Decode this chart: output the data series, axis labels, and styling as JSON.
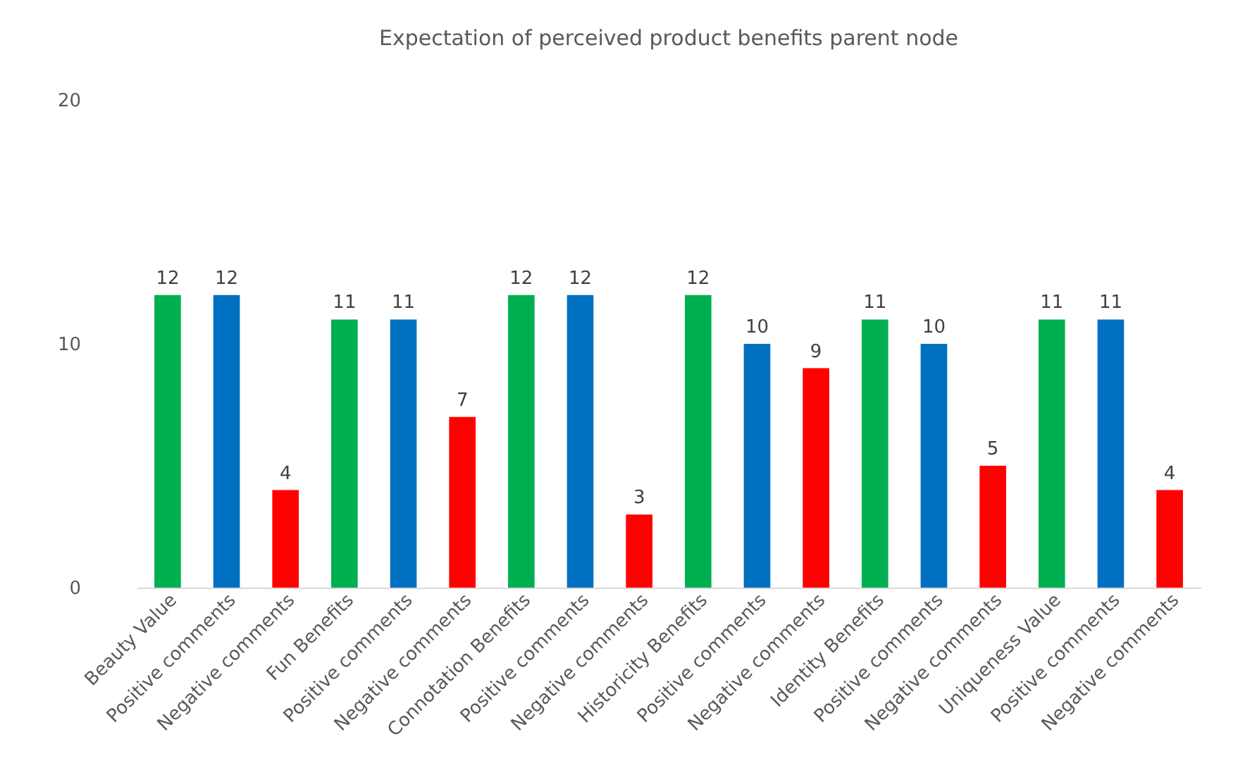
{
  "chart_data": {
    "type": "bar",
    "title": "Expectation of perceived product benefits parent node",
    "categories": [
      "Beauty Value",
      "Positive comments",
      "Negative comments",
      "Fun Benefits",
      "Positive comments",
      "Negative comments",
      "Connotation Benefits",
      "Positive comments",
      "Negative comments",
      "Historicity Benefits",
      "Positive comments",
      "Negative comments",
      "Identity Benefits",
      "Positive comments",
      "Negative comments",
      "Uniqueness Value",
      "Positive comments",
      "Negative comments"
    ],
    "values": [
      12,
      12,
      4,
      11,
      11,
      7,
      12,
      12,
      3,
      12,
      10,
      9,
      11,
      10,
      5,
      11,
      11,
      4
    ],
    "colors": [
      "#00b050",
      "#0070c0",
      "#ff0000",
      "#00b050",
      "#0070c0",
      "#ff0000",
      "#00b050",
      "#0070c0",
      "#ff0000",
      "#00b050",
      "#0070c0",
      "#ff0000",
      "#00b050",
      "#0070c0",
      "#ff0000",
      "#00b050",
      "#0070c0",
      "#ff0000"
    ],
    "ylim": [
      0,
      20
    ],
    "yticks": [
      0,
      10,
      20
    ],
    "grid": false,
    "data_labels": true
  }
}
